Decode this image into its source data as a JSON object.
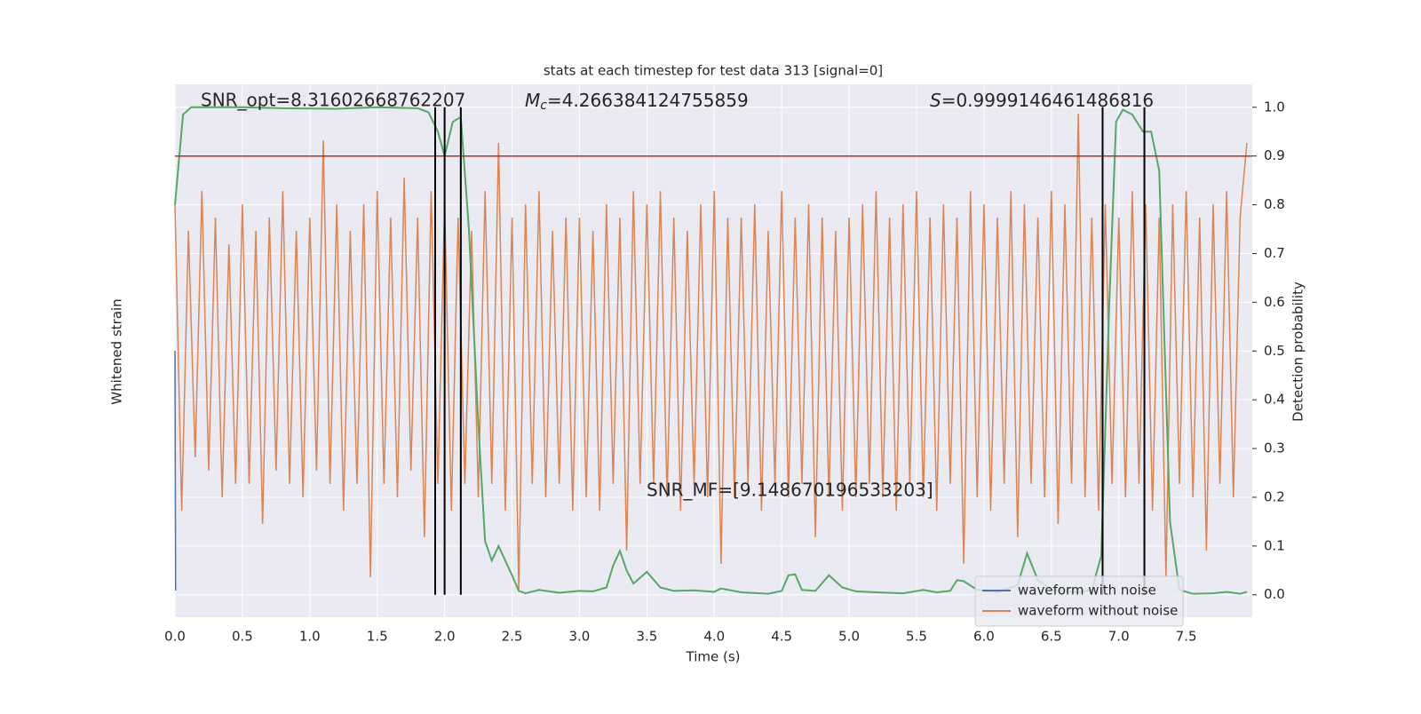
{
  "chart_data": {
    "type": "line",
    "title": "stats at each timestep for test data 313 [signal=0]",
    "x_label": "Time (s)",
    "y_label": "Whitened strain",
    "y2_label": "Detection probability",
    "xlim": [
      0,
      7.99
    ],
    "xticks": [
      {
        "value": 0,
        "label": "0.0"
      },
      0.5,
      {
        "value": 1,
        "label": "1.0"
      },
      1.5,
      {
        "value": 2,
        "label": "2.0"
      },
      2.5,
      {
        "value": 3,
        "label": "3.0"
      },
      3.5,
      {
        "value": 4,
        "label": "4.0"
      },
      4.5,
      {
        "value": 5,
        "label": "5.0"
      },
      5.5,
      {
        "value": 6,
        "label": "6.0"
      },
      6.5,
      {
        "value": 7,
        "label": "7.0"
      },
      7.5
    ],
    "ylim": [
      -1,
      1
    ],
    "y2lim": [
      -0.046,
      1.047
    ],
    "y2ticks": [
      {
        "value": 0,
        "label": "0.0"
      },
      0.1,
      0.2,
      0.3,
      0.4,
      0.5,
      0.6,
      0.7,
      0.8,
      0.9,
      {
        "value": 1,
        "label": "1.0"
      }
    ],
    "grid": true,
    "legend": "lower right",
    "threshold": {
      "value": 0.9,
      "axis": "y2",
      "color": "#b03030"
    },
    "vlines": {
      "x": [
        1.93,
        2.0,
        2.12,
        6.88,
        7.19
      ],
      "color": "#000000"
    },
    "annotations": [
      {
        "text": "SNR_opt=8.31602668762207"
      },
      {
        "symbol": "M",
        "subscript": "c",
        "text": "=4.266384124755859"
      },
      {
        "symbol": "S",
        "text": "=0.9999146461486816"
      },
      {
        "text": "SNR_MF=[9.148670196533203]"
      }
    ],
    "series": [
      {
        "name": "waveform with noise",
        "color": "#4c72b0",
        "x": [
          0,
          0.005
        ],
        "values": [
          0.0,
          -0.9
        ]
      },
      {
        "name": "waveform without noise",
        "color": "#dd8452",
        "x": [
          0,
          0.05,
          0.1,
          0.15,
          0.2,
          0.25,
          0.3,
          0.35,
          0.4,
          0.45,
          0.5,
          0.55,
          0.6,
          0.65,
          0.7,
          0.75,
          0.8,
          0.85,
          0.9,
          0.95,
          1,
          1.05,
          1.1,
          1.15,
          1.2,
          1.25,
          1.3,
          1.35,
          1.4,
          1.45,
          1.5,
          1.55,
          1.6,
          1.65,
          1.7,
          1.75,
          1.8,
          1.85,
          1.9,
          1.95,
          2,
          2.05,
          2.1,
          2.15,
          2.2,
          2.25,
          2.3,
          2.35,
          2.4,
          2.45,
          2.5,
          2.55,
          2.6,
          2.65,
          2.7,
          2.75,
          2.8,
          2.85,
          2.9,
          2.95,
          3,
          3.05,
          3.1,
          3.15,
          3.2,
          3.25,
          3.3,
          3.35,
          3.4,
          3.45,
          3.5,
          3.55,
          3.6,
          3.65,
          3.7,
          3.75,
          3.8,
          3.85,
          3.9,
          3.95,
          4,
          4.05,
          4.1,
          4.15,
          4.2,
          4.25,
          4.3,
          4.35,
          4.4,
          4.45,
          4.5,
          4.55,
          4.6,
          4.65,
          4.7,
          4.75,
          4.8,
          4.85,
          4.9,
          4.95,
          5,
          5.05,
          5.1,
          5.15,
          5.2,
          5.25,
          5.3,
          5.35,
          5.4,
          5.45,
          5.5,
          5.55,
          5.6,
          5.65,
          5.7,
          5.75,
          5.8,
          5.85,
          5.9,
          5.95,
          6,
          6.05,
          6.1,
          6.15,
          6.2,
          6.25,
          6.3,
          6.35,
          6.4,
          6.45,
          6.5,
          6.55,
          6.6,
          6.65,
          6.7,
          6.75,
          6.8,
          6.85,
          6.9,
          6.95,
          7,
          7.05,
          7.1,
          7.15,
          7.2,
          7.25,
          7.3,
          7.35,
          7.4,
          7.45,
          7.5,
          7.55,
          7.6,
          7.65,
          7.7,
          7.75,
          7.8,
          7.85,
          7.9,
          7.95
        ],
        "values": [
          0.55,
          -0.6,
          0.45,
          -0.4,
          0.6,
          -0.45,
          0.5,
          -0.55,
          0.4,
          -0.5,
          0.55,
          -0.5,
          0.45,
          -0.65,
          0.5,
          -0.45,
          0.6,
          -0.5,
          0.45,
          -0.55,
          0.5,
          -0.45,
          0.79,
          -0.5,
          0.55,
          -0.6,
          0.45,
          -0.5,
          0.55,
          -0.85,
          0.6,
          -0.5,
          0.5,
          -0.55,
          0.65,
          -0.45,
          0.5,
          -0.7,
          0.6,
          -0.5,
          0.55,
          -0.6,
          0.5,
          -0.5,
          0.45,
          -0.55,
          0.6,
          -0.5,
          0.78,
          -0.6,
          0.5,
          -0.9,
          0.55,
          -0.5,
          0.6,
          -0.55,
          0.45,
          -0.5,
          0.5,
          -0.6,
          0.5,
          -0.55,
          0.45,
          -0.6,
          0.55,
          -0.5,
          0.5,
          -0.75,
          0.6,
          -0.5,
          0.55,
          -0.5,
          0.6,
          -0.55,
          0.5,
          -0.6,
          0.45,
          -0.5,
          0.55,
          -0.55,
          0.6,
          -0.8,
          0.5,
          -0.55,
          0.5,
          -0.5,
          0.55,
          -0.6,
          0.45,
          -0.5,
          0.6,
          -0.55,
          0.5,
          -0.5,
          0.55,
          -0.7,
          0.5,
          -0.55,
          0.45,
          -0.6,
          0.5,
          -0.55,
          0.55,
          -0.5,
          0.6,
          -0.55,
          0.5,
          -0.6,
          0.55,
          -0.5,
          0.6,
          -0.55,
          0.5,
          -0.6,
          0.55,
          -0.5,
          0.5,
          -0.8,
          0.6,
          -0.55,
          0.55,
          -0.6,
          0.5,
          -0.5,
          0.6,
          -0.7,
          0.55,
          -0.5,
          0.5,
          -0.55,
          0.6,
          -0.65,
          0.55,
          -0.5,
          0.89,
          -0.55,
          0.5,
          -0.6,
          0.55,
          -0.5,
          0.5,
          -0.55,
          0.6,
          -0.5,
          0.55,
          -0.6,
          0.5,
          -0.85,
          0.55,
          -0.5,
          0.6,
          -0.55,
          0.5,
          -0.75,
          0.55,
          -0.5,
          0.6,
          -0.55,
          0.5,
          0.78
        ]
      },
      {
        "name": null,
        "color": "#55a868",
        "axis": "y2",
        "x": [
          0,
          0.06,
          0.12,
          0.5,
          0.8,
          1.2,
          1.5,
          1.8,
          1.88,
          1.95,
          2.0,
          2.06,
          2.12,
          2.18,
          2.25,
          2.3,
          2.35,
          2.4,
          2.5,
          2.55,
          2.6,
          2.7,
          2.85,
          3.0,
          3.1,
          3.2,
          3.25,
          3.3,
          3.35,
          3.4,
          3.5,
          3.6,
          3.7,
          3.85,
          4.0,
          4.05,
          4.2,
          4.4,
          4.5,
          4.55,
          4.6,
          4.65,
          4.75,
          4.85,
          4.95,
          5.05,
          5.2,
          5.4,
          5.55,
          5.65,
          5.75,
          5.8,
          5.85,
          5.95,
          6.1,
          6.25,
          6.32,
          6.4,
          6.5,
          6.7,
          6.8,
          6.87,
          6.93,
          6.98,
          7.03,
          7.1,
          7.18,
          7.24,
          7.3,
          7.38,
          7.45,
          7.55,
          7.7,
          7.8,
          7.9,
          7.95
        ],
        "values": [
          0.8,
          0.985,
          1.0,
          1.0,
          0.998,
          0.997,
          1.0,
          0.998,
          0.99,
          0.95,
          0.9,
          0.97,
          0.98,
          0.75,
          0.35,
          0.11,
          0.07,
          0.1,
          0.04,
          0.008,
          0.003,
          0.01,
          0.004,
          0.008,
          0.007,
          0.015,
          0.06,
          0.09,
          0.05,
          0.023,
          0.047,
          0.015,
          0.008,
          0.009,
          0.006,
          0.013,
          0.005,
          0.002,
          0.008,
          0.04,
          0.042,
          0.01,
          0.008,
          0.04,
          0.015,
          0.007,
          0.005,
          0.003,
          0.01,
          0.005,
          0.008,
          0.03,
          0.028,
          0.01,
          0.005,
          0.02,
          0.085,
          0.03,
          0.01,
          0.005,
          0.01,
          0.08,
          0.6,
          0.97,
          0.995,
          0.985,
          0.95,
          0.95,
          0.87,
          0.15,
          0.01,
          0.002,
          0.003,
          0.006,
          0.002,
          0.006
        ]
      }
    ]
  }
}
